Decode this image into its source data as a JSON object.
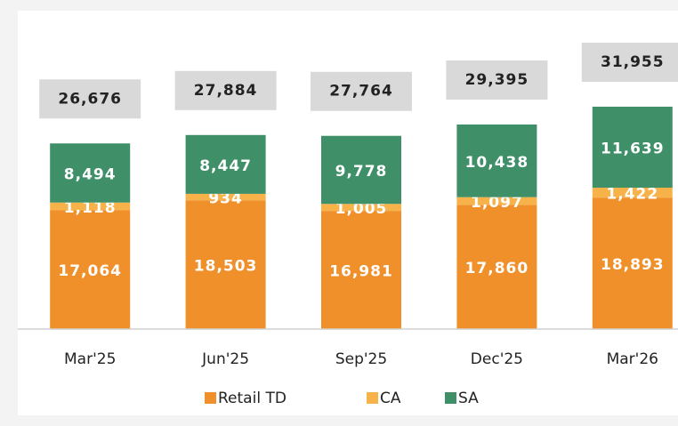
{
  "chart_data": {
    "type": "stacked_bar",
    "categories": [
      "Mar'25",
      "Jun'25",
      "Sep'25",
      "Dec'25",
      "Mar'26"
    ],
    "series": [
      {
        "name": "Retail TD",
        "color": "#f0902b",
        "values": [
          17064,
          18503,
          16981,
          17860,
          18893
        ],
        "value_labels": [
          "17,064",
          "18,503",
          "16,981",
          "17,860",
          "18,893"
        ]
      },
      {
        "name": "CA",
        "color": "#f8b24a",
        "values": [
          1118,
          934,
          1005,
          1097,
          1422
        ],
        "value_labels": [
          "1,118",
          "934",
          "1,005",
          "1,097",
          "1,422"
        ]
      },
      {
        "name": "SA",
        "color": "#3f8f69",
        "values": [
          8494,
          8447,
          9778,
          10438,
          11639
        ],
        "value_labels": [
          "8,494",
          "8,447",
          "9,778",
          "10,438",
          "11,639"
        ]
      }
    ],
    "totals": {
      "values": [
        26676,
        27884,
        27764,
        29395,
        31955
      ],
      "value_labels": [
        "26,676",
        "27,884",
        "27,764",
        "29,395",
        "31,955"
      ]
    },
    "ylim": [
      0,
      40000
    ],
    "legend": "bottom"
  }
}
